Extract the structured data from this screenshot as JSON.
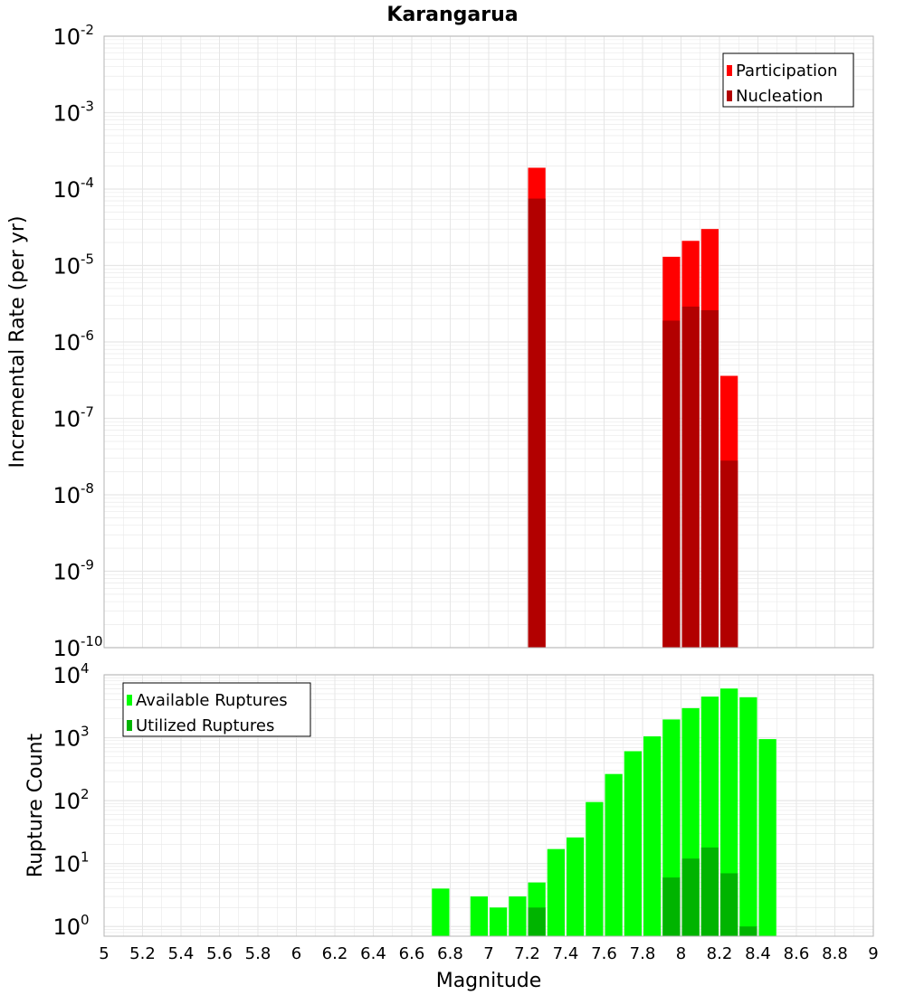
{
  "colors": {
    "participation": "#ff0000",
    "nucleation": "#b20000",
    "available": "#00ff00",
    "utilized": "#00b400",
    "grid": "#e6e6e6",
    "frame": "#b4b4b4"
  },
  "chart_data": [
    {
      "type": "bar",
      "title": "Karangarua",
      "xlabel": "",
      "ylabel": "Incremental Rate (per yr)",
      "yscale": "log",
      "ylim": [
        1e-10,
        0.01
      ],
      "xlim": [
        5,
        9
      ],
      "y_tick_exponents": [
        "-10",
        "-9",
        "-8",
        "-7",
        "-6",
        "-5",
        "-4",
        "-3",
        "-2"
      ],
      "legend": [
        "Participation",
        "Nucleation"
      ],
      "legend_position": "top-right",
      "bin_width": 0.1,
      "series": [
        {
          "name": "Participation",
          "points": [
            {
              "x": 7.25,
              "y": 0.00019
            },
            {
              "x": 7.95,
              "y": 1.3e-05
            },
            {
              "x": 8.05,
              "y": 2.1e-05
            },
            {
              "x": 8.15,
              "y": 3e-05
            },
            {
              "x": 8.25,
              "y": 3.6e-07
            }
          ]
        },
        {
          "name": "Nucleation",
          "points": [
            {
              "x": 7.25,
              "y": 7.5e-05
            },
            {
              "x": 7.95,
              "y": 1.9e-06
            },
            {
              "x": 8.05,
              "y": 2.9e-06
            },
            {
              "x": 8.15,
              "y": 2.6e-06
            },
            {
              "x": 8.25,
              "y": 2.8e-08
            }
          ]
        }
      ]
    },
    {
      "type": "bar",
      "xlabel": "Magnitude",
      "ylabel": "Rupture Count",
      "yscale": "log",
      "ylim": [
        0.7,
        10000
      ],
      "xlim": [
        5,
        9
      ],
      "y_tick_exponents": [
        "0",
        "1",
        "2",
        "3",
        "4"
      ],
      "x_ticks": [
        "5",
        "5.2",
        "5.4",
        "5.6",
        "5.8",
        "6",
        "6.2",
        "6.4",
        "6.6",
        "6.8",
        "7",
        "7.2",
        "7.4",
        "7.6",
        "7.8",
        "8",
        "8.2",
        "8.4",
        "8.6",
        "8.8",
        "9"
      ],
      "legend": [
        "Available Ruptures",
        "Utilized Ruptures"
      ],
      "legend_position": "top-left",
      "bin_width": 0.1,
      "series": [
        {
          "name": "Available Ruptures",
          "points": [
            {
              "x": 6.75,
              "y": 4
            },
            {
              "x": 6.95,
              "y": 3
            },
            {
              "x": 7.05,
              "y": 2
            },
            {
              "x": 7.15,
              "y": 3
            },
            {
              "x": 7.25,
              "y": 5
            },
            {
              "x": 7.35,
              "y": 17
            },
            {
              "x": 7.45,
              "y": 26
            },
            {
              "x": 7.55,
              "y": 95
            },
            {
              "x": 7.65,
              "y": 265
            },
            {
              "x": 7.75,
              "y": 610
            },
            {
              "x": 7.85,
              "y": 1050
            },
            {
              "x": 7.95,
              "y": 1950
            },
            {
              "x": 8.05,
              "y": 2950
            },
            {
              "x": 8.15,
              "y": 4500
            },
            {
              "x": 8.25,
              "y": 6050
            },
            {
              "x": 8.35,
              "y": 4400
            },
            {
              "x": 8.45,
              "y": 950
            }
          ]
        },
        {
          "name": "Utilized Ruptures",
          "points": [
            {
              "x": 7.25,
              "y": 2
            },
            {
              "x": 7.95,
              "y": 6
            },
            {
              "x": 8.05,
              "y": 12
            },
            {
              "x": 8.15,
              "y": 18
            },
            {
              "x": 8.25,
              "y": 7
            },
            {
              "x": 8.35,
              "y": 1
            }
          ]
        }
      ]
    }
  ]
}
